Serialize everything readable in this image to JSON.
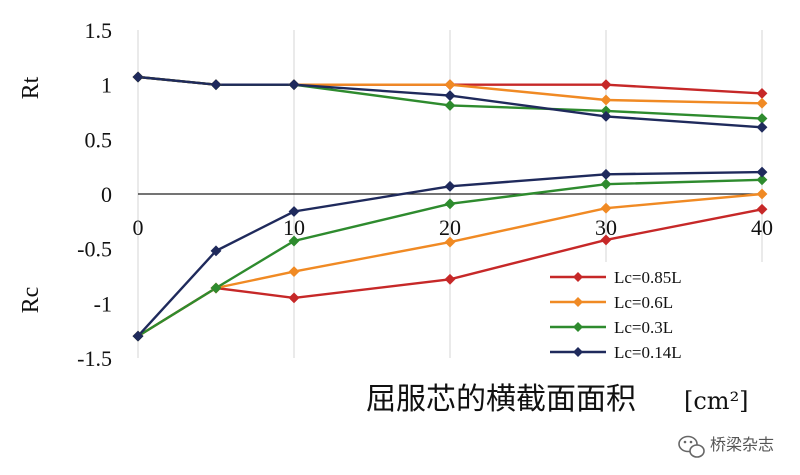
{
  "chart_data": {
    "type": "line",
    "title": "",
    "xlabel": "屈服芯的横截面面积",
    "xunit": "[cm²]",
    "ylabel_top": "Rt",
    "ylabel_bottom": "Rc",
    "xlim": [
      0,
      40
    ],
    "ylim": [
      -1.5,
      1.5
    ],
    "xticks": [
      0,
      10,
      20,
      30,
      40
    ],
    "yticks": [
      1.5,
      1,
      0.5,
      0,
      -0.5,
      -1,
      -1.5
    ],
    "ytick_labels": [
      "1.5",
      "1",
      "0.5",
      "0",
      "-0.5",
      "-1",
      "-1.5"
    ],
    "grid": "vertical",
    "legend_position": "bottom-right",
    "series": [
      {
        "name": "Lc=0.85L",
        "color": "#c62828",
        "tension": {
          "x": [
            0,
            5,
            10,
            20,
            30,
            40
          ],
          "y": [
            1.07,
            1.0,
            1.0,
            1.0,
            1.0,
            0.92
          ]
        },
        "compression": {
          "x": [
            0,
            5,
            10,
            20,
            30,
            40
          ],
          "y": [
            -1.3,
            -0.86,
            -0.95,
            -0.78,
            -0.42,
            -0.14
          ]
        }
      },
      {
        "name": "Lc=0.6L",
        "color": "#f08a24",
        "tension": {
          "x": [
            0,
            5,
            10,
            20,
            30,
            40
          ],
          "y": [
            1.07,
            1.0,
            1.0,
            1.0,
            0.86,
            0.83
          ]
        },
        "compression": {
          "x": [
            0,
            5,
            10,
            20,
            30,
            40
          ],
          "y": [
            -1.3,
            -0.86,
            -0.71,
            -0.44,
            -0.13,
            0.0
          ]
        }
      },
      {
        "name": "Lc=0.3L",
        "color": "#2e8b2e",
        "tension": {
          "x": [
            0,
            5,
            10,
            20,
            30,
            40
          ],
          "y": [
            1.07,
            1.0,
            1.0,
            0.81,
            0.76,
            0.69
          ]
        },
        "compression": {
          "x": [
            0,
            5,
            10,
            20,
            30,
            40
          ],
          "y": [
            -1.3,
            -0.86,
            -0.43,
            -0.09,
            0.09,
            0.13
          ]
        }
      },
      {
        "name": "Lc=0.14L",
        "color": "#1f2a5c",
        "tension": {
          "x": [
            0,
            5,
            10,
            20,
            30,
            40
          ],
          "y": [
            1.07,
            1.0,
            1.0,
            0.9,
            0.71,
            0.61
          ]
        },
        "compression": {
          "x": [
            0,
            5,
            10,
            20,
            30,
            40
          ],
          "y": [
            -1.3,
            -0.52,
            -0.16,
            0.07,
            0.18,
            0.2
          ]
        }
      }
    ]
  },
  "watermark": {
    "icon": "wechat-icon",
    "text": "桥梁杂志"
  }
}
